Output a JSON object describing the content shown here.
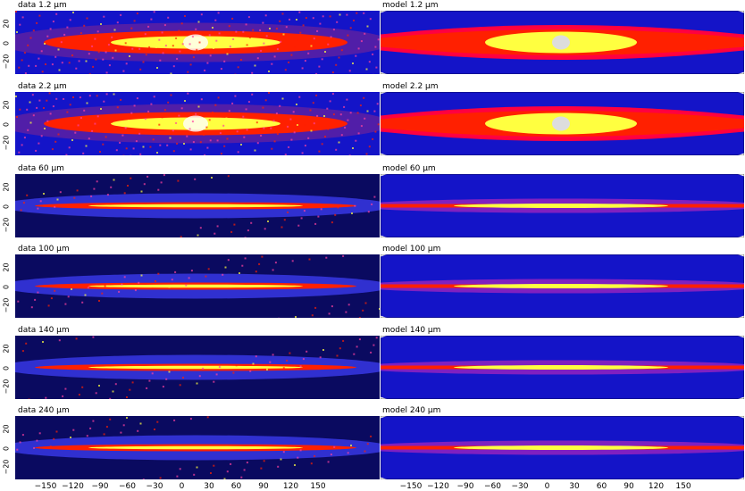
{
  "rows": [
    {
      "data_label": "data 1.2 μm",
      "model_label": "model 1.2 μm"
    },
    {
      "data_label": "data 2.2 μm",
      "model_label": "model 2.2 μm"
    },
    {
      "data_label": "data 60 μm",
      "model_label": "model 60 μm"
    },
    {
      "data_label": "data 100 μm",
      "model_label": "model 100 μm"
    },
    {
      "data_label": "data 140 μm",
      "model_label": "model 140 μm"
    },
    {
      "data_label": "data 240 μm",
      "model_label": "model 240 μm"
    }
  ],
  "y_ticks": [
    "20",
    "0",
    "−20"
  ],
  "x_ticks": [
    "−150",
    "−120",
    "−90",
    "−60",
    "−30",
    "0",
    "30",
    "60",
    "90",
    "120",
    "150"
  ],
  "colors": {
    "background_blue": "#1414c8",
    "dark_blue": "#0a0a60",
    "band_red": "#ff2000",
    "band_yellow": "#ffff40"
  }
}
